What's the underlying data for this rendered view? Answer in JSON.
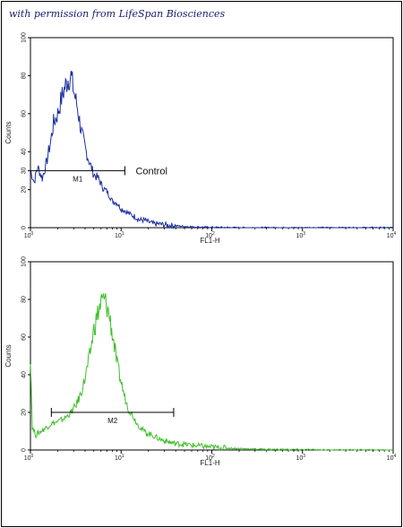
{
  "credit": "with permission from LifeSpan Biosciences",
  "chart_data": [
    {
      "type": "line",
      "series": [
        {
          "name": "Control",
          "color": "#1a2fa0",
          "x": [
            1,
            1.1,
            1.2,
            1.35,
            1.5,
            1.65,
            1.8,
            2,
            2.2,
            2.4,
            2.6,
            2.8,
            3,
            3.3,
            3.6,
            4,
            4.5,
            5,
            5.6,
            6.3,
            7,
            8,
            9,
            10,
            11,
            12.5,
            14,
            16,
            18,
            20,
            23,
            26,
            30,
            35,
            40,
            50,
            60,
            80,
            100,
            150,
            200,
            500,
            1000,
            10000
          ],
          "y": [
            30,
            24,
            32,
            26,
            34,
            44,
            55,
            60,
            68,
            74,
            78,
            80,
            72,
            63,
            52,
            42,
            34,
            28,
            26,
            21,
            19,
            14,
            13,
            10,
            9,
            7,
            6,
            4,
            4,
            3,
            2,
            2,
            1.5,
            1.2,
            1,
            0.7,
            0.5,
            0.3,
            0.2,
            0.1,
            0,
            0,
            0,
            0
          ]
        }
      ],
      "x_scale": "log",
      "xlim": [
        1,
        10000
      ],
      "ylim": [
        0,
        100
      ],
      "x_ticks": {
        "base": "10",
        "exponents": [
          "0",
          "1",
          "2",
          "3",
          "4"
        ]
      },
      "y_ticks": [
        "0",
        "20",
        "30",
        "40",
        "60",
        "80",
        "100"
      ],
      "xlabel": "FL1-H",
      "ylabel": "Counts",
      "gate": {
        "label": "M1",
        "x_start": 1,
        "x_end": 11,
        "y": 30
      },
      "annotation": "Control"
    },
    {
      "type": "line",
      "series": [
        {
          "name": "",
          "color": "#3fbf2a",
          "x": [
            1,
            1.05,
            1.15,
            1.3,
            1.5,
            1.7,
            2,
            2.4,
            2.8,
            3.2,
            3.6,
            4,
            4.5,
            5,
            5.5,
            6,
            6.5,
            7,
            7.5,
            8,
            9,
            10,
            11,
            12,
            13.5,
            15,
            17,
            19,
            22,
            26,
            30,
            35,
            40,
            50,
            60,
            80,
            100,
            150,
            200,
            300,
            500,
            1000,
            2000,
            10000
          ],
          "y": [
            50,
            12,
            8,
            10,
            12,
            14,
            15,
            17,
            20,
            24,
            30,
            38,
            50,
            64,
            72,
            78,
            80,
            76,
            70,
            62,
            46,
            36,
            28,
            22,
            18,
            14,
            11,
            9,
            8,
            6,
            5,
            4,
            3.5,
            3,
            2.5,
            2,
            1.5,
            1,
            0.8,
            0.5,
            0.3,
            0.2,
            0,
            0
          ]
        }
      ],
      "x_scale": "log",
      "xlim": [
        1,
        10000
      ],
      "ylim": [
        0,
        100
      ],
      "x_ticks": {
        "base": "10",
        "exponents": [
          "0",
          "1",
          "2",
          "3",
          "4"
        ]
      },
      "y_ticks": [
        "0",
        "20",
        "40",
        "60",
        "80",
        "100"
      ],
      "xlabel": "FL1-H",
      "ylabel": "Counts",
      "gate": {
        "label": "M2",
        "x_start": 1.7,
        "x_end": 38,
        "y": 20
      },
      "annotation": ""
    }
  ]
}
